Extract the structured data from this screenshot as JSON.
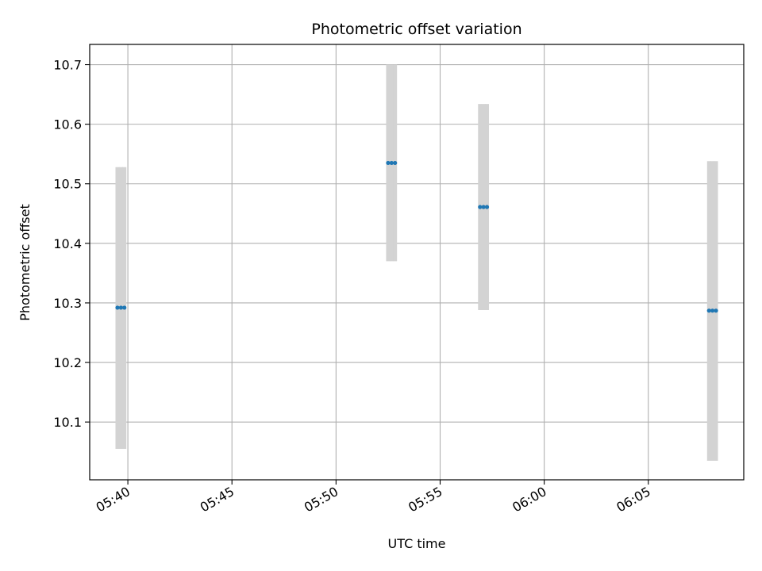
{
  "chart_data": {
    "type": "scatter",
    "title": "Photometric offset variation",
    "xlabel": "UTC time",
    "ylabel": "Photometric offset",
    "x_ticks": [
      "05:40",
      "05:45",
      "05:50",
      "05:55",
      "06:00",
      "06:05"
    ],
    "y_ticks": [
      "10.1",
      "10.2",
      "10.3",
      "10.4",
      "10.5",
      "10.6",
      "10.7"
    ],
    "xlim": [
      "05:38:10",
      "06:09:35"
    ],
    "ylim": [
      10.003,
      10.734
    ],
    "grid": true,
    "error_bar_color": "#d3d3d3",
    "point_color": "#1f77b4",
    "series": [
      {
        "points": [
          {
            "x": "05:39:30",
            "y": 10.292,
            "ymin": 10.055,
            "ymax": 10.528
          },
          {
            "x": "05:39:40",
            "y": 10.292,
            "ymin": 10.055,
            "ymax": 10.528
          },
          {
            "x": "05:39:50",
            "y": 10.292,
            "ymin": 10.055,
            "ymax": 10.528
          },
          {
            "x": "05:52:30",
            "y": 10.535,
            "ymin": 10.37,
            "ymax": 10.7
          },
          {
            "x": "05:52:40",
            "y": 10.535,
            "ymin": 10.37,
            "ymax": 10.7
          },
          {
            "x": "05:52:50",
            "y": 10.535,
            "ymin": 10.37,
            "ymax": 10.7
          },
          {
            "x": "05:56:55",
            "y": 10.461,
            "ymin": 10.288,
            "ymax": 10.634
          },
          {
            "x": "05:57:05",
            "y": 10.461,
            "ymin": 10.288,
            "ymax": 10.634
          },
          {
            "x": "05:57:15",
            "y": 10.461,
            "ymin": 10.288,
            "ymax": 10.634
          },
          {
            "x": "06:07:55",
            "y": 10.287,
            "ymin": 10.035,
            "ymax": 10.538
          },
          {
            "x": "06:08:05",
            "y": 10.287,
            "ymin": 10.035,
            "ymax": 10.538
          },
          {
            "x": "06:08:15",
            "y": 10.287,
            "ymin": 10.035,
            "ymax": 10.538
          }
        ]
      }
    ]
  }
}
